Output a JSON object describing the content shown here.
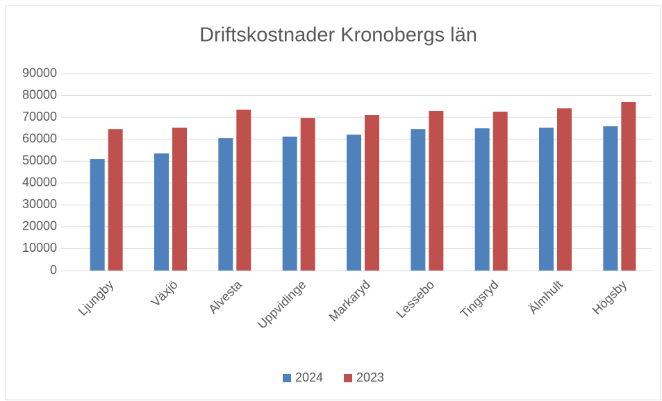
{
  "chart_data": {
    "type": "bar",
    "title": "Driftskostnader Kronobergs län",
    "categories": [
      "Ljungby",
      "Växjö",
      "Alvesta",
      "Uppvidinge",
      "Markaryd",
      "Lessebo",
      "Tingsryd",
      "Älmhult",
      "Högsby"
    ],
    "series": [
      {
        "name": "2024",
        "color": "#4f81bd",
        "values": [
          51000,
          53500,
          60500,
          61200,
          62100,
          64600,
          65000,
          65300,
          65900
        ]
      },
      {
        "name": "2023",
        "color": "#c0504d",
        "values": [
          64600,
          65300,
          73500,
          69700,
          71000,
          72900,
          72600,
          74100,
          77000
        ]
      }
    ],
    "ylim": [
      0,
      90000
    ],
    "yticks": [
      0,
      10000,
      20000,
      30000,
      40000,
      50000,
      60000,
      70000,
      80000,
      90000
    ],
    "grid": true,
    "legend": "bottom"
  }
}
